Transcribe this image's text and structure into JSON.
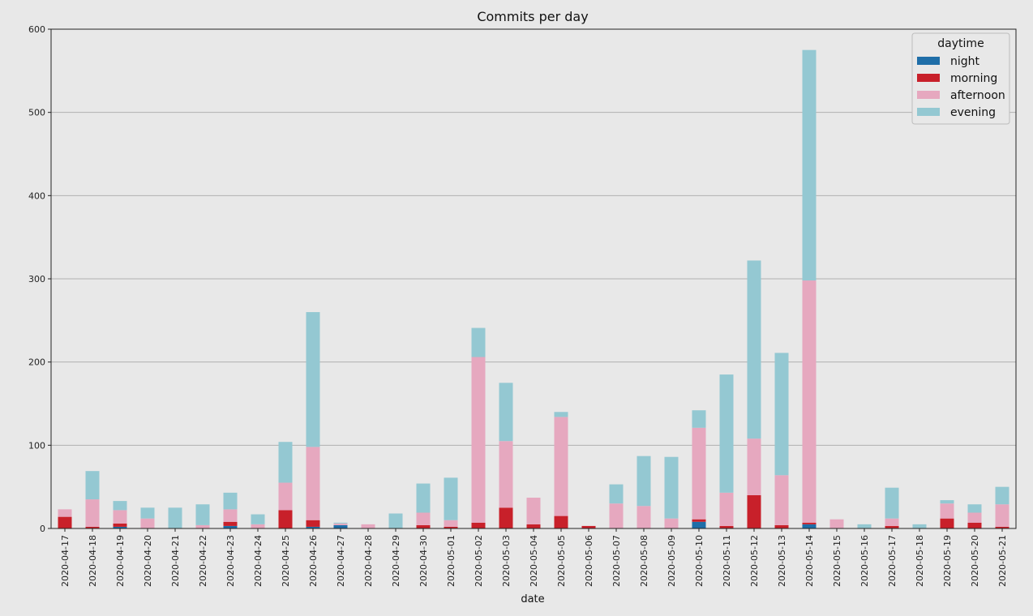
{
  "chart_data": {
    "type": "bar",
    "stacked": true,
    "title": "Commits per day",
    "xlabel": "date",
    "ylabel": "",
    "ylim": [
      0,
      600
    ],
    "yticks": [
      0,
      100,
      200,
      300,
      400,
      500,
      600
    ],
    "grid": "y",
    "legend": {
      "title": "daytime",
      "placement": "top-right"
    },
    "categories": [
      "2020-04-17",
      "2020-04-18",
      "2020-04-19",
      "2020-04-20",
      "2020-04-21",
      "2020-04-22",
      "2020-04-23",
      "2020-04-24",
      "2020-04-25",
      "2020-04-26",
      "2020-04-27",
      "2020-04-28",
      "2020-04-29",
      "2020-04-30",
      "2020-05-01",
      "2020-05-02",
      "2020-05-03",
      "2020-05-04",
      "2020-05-05",
      "2020-05-06",
      "2020-05-07",
      "2020-05-08",
      "2020-05-09",
      "2020-05-10",
      "2020-05-11",
      "2020-05-12",
      "2020-05-13",
      "2020-05-14",
      "2020-05-15",
      "2020-05-16",
      "2020-05-17",
      "2020-05-18",
      "2020-05-19",
      "2020-05-20",
      "2020-05-21"
    ],
    "series": [
      {
        "name": "night",
        "color": "#1f6ea8",
        "values": [
          0,
          0,
          2,
          0,
          0,
          0,
          3,
          0,
          0,
          2,
          4,
          0,
          0,
          0,
          0,
          0,
          0,
          0,
          0,
          0,
          0,
          0,
          0,
          8,
          0,
          0,
          0,
          5,
          0,
          0,
          0,
          0,
          0,
          0,
          0
        ]
      },
      {
        "name": "morning",
        "color": "#c8202a",
        "values": [
          14,
          2,
          4,
          0,
          0,
          0,
          5,
          0,
          22,
          8,
          0,
          0,
          0,
          4,
          2,
          7,
          25,
          5,
          15,
          3,
          0,
          0,
          0,
          3,
          3,
          40,
          4,
          2,
          0,
          0,
          3,
          0,
          12,
          7,
          2
        ]
      },
      {
        "name": "afternoon",
        "color": "#e6a8bf",
        "values": [
          9,
          33,
          16,
          12,
          0,
          4,
          15,
          5,
          33,
          88,
          2,
          5,
          0,
          15,
          8,
          199,
          80,
          32,
          119,
          0,
          30,
          27,
          12,
          110,
          40,
          68,
          60,
          291,
          11,
          0,
          9,
          0,
          18,
          12,
          27
        ]
      },
      {
        "name": "evening",
        "color": "#94c8d2",
        "values": [
          0,
          34,
          11,
          13,
          25,
          25,
          20,
          12,
          49,
          162,
          1,
          0,
          18,
          35,
          51,
          35,
          70,
          0,
          6,
          0,
          23,
          60,
          74,
          21,
          142,
          214,
          147,
          277,
          0,
          5,
          37,
          5,
          4,
          10,
          21
        ]
      }
    ]
  }
}
